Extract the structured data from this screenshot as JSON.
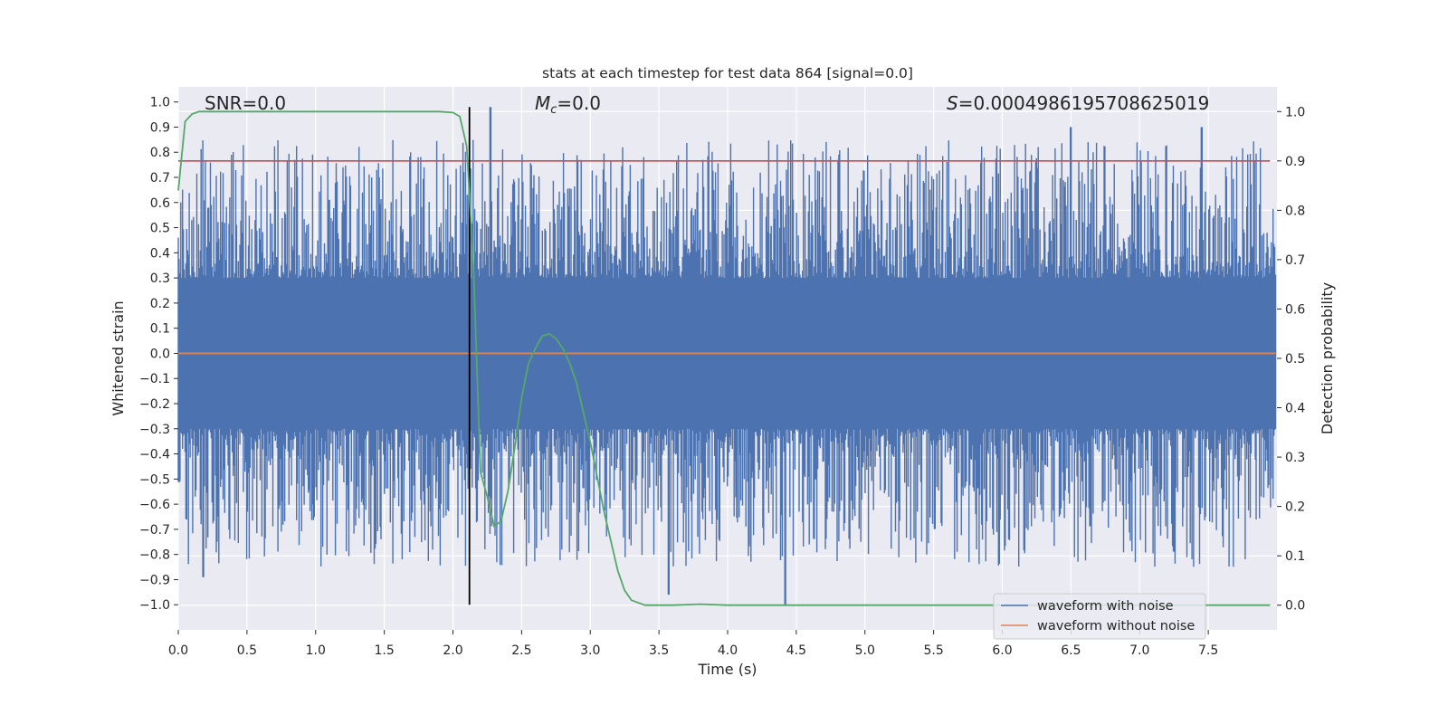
{
  "chart_data": {
    "type": "line",
    "title": "stats at each timestep for test data 864 [signal=0.0]",
    "xlabel": "Time (s)",
    "ylabel_left": "Whitened strain",
    "ylabel_right": "Detection probability",
    "xlim": [
      0.0,
      8.0
    ],
    "ylim_left": [
      -1.1,
      1.06
    ],
    "ylim_right": [
      -0.05,
      1.05
    ],
    "x_ticks": [
      "0.0",
      "0.5",
      "1.0",
      "1.5",
      "2.0",
      "2.5",
      "3.0",
      "3.5",
      "4.0",
      "4.5",
      "5.0",
      "5.5",
      "6.0",
      "6.5",
      "7.0",
      "7.5"
    ],
    "x_tick_values": [
      0.0,
      0.5,
      1.0,
      1.5,
      2.0,
      2.5,
      3.0,
      3.5,
      4.0,
      4.5,
      5.0,
      5.5,
      6.0,
      6.5,
      7.0,
      7.5
    ],
    "y_left_ticks": [
      "1.0",
      "0.9",
      "0.8",
      "0.7",
      "0.6",
      "0.5",
      "0.4",
      "0.3",
      "0.2",
      "0.1",
      "0.0",
      "−0.1",
      "−0.2",
      "−0.3",
      "−0.4",
      "−0.5",
      "−0.6",
      "−0.7",
      "−0.8",
      "−0.9",
      "−1.0"
    ],
    "y_left_tick_values": [
      1.0,
      0.9,
      0.8,
      0.7,
      0.6,
      0.5,
      0.4,
      0.3,
      0.2,
      0.1,
      0.0,
      -0.1,
      -0.2,
      -0.3,
      -0.4,
      -0.5,
      -0.6,
      -0.7,
      -0.8,
      -0.9,
      -1.0
    ],
    "y_right_ticks": [
      "1.0",
      "0.9",
      "0.8",
      "0.7",
      "0.6",
      "0.5",
      "0.4",
      "0.3",
      "0.2",
      "0.1",
      "0.0"
    ],
    "y_right_tick_values": [
      1.0,
      0.9,
      0.8,
      0.7,
      0.6,
      0.5,
      0.4,
      0.3,
      0.2,
      0.1,
      0.0
    ],
    "grid": true,
    "legend_position": "bottom-right",
    "legend": [
      "waveform with noise",
      "waveform without noise"
    ],
    "annotations": {
      "snr": "SNR=0.0",
      "mc_symbol": "M",
      "mc_subscript": "c",
      "mc_value": "=0.0",
      "s_symbol": "S",
      "s_value": "=0.0004986195708625019"
    },
    "series": [
      {
        "name": "waveform with noise",
        "axis": "left",
        "color": "#4c72b0",
        "style": "dense noise",
        "x_range": [
          0.0,
          7.99
        ],
        "approx_envelope": [
          -1.0,
          0.98
        ],
        "notable_peaks": [
          {
            "x": 0.18,
            "y": -0.89
          },
          {
            "x": 2.27,
            "y": 0.98
          },
          {
            "x": 3.57,
            "y": -0.96
          },
          {
            "x": 4.42,
            "y": -1.0
          },
          {
            "x": 6.5,
            "y": 0.9
          },
          {
            "x": 7.45,
            "y": 0.9
          }
        ]
      },
      {
        "name": "waveform without noise",
        "axis": "left",
        "color": "#dd8452",
        "x": [
          0.0,
          7.99
        ],
        "y": [
          0.0,
          0.0
        ]
      },
      {
        "name": "detection probability",
        "axis": "right",
        "color": "#55a868",
        "x": [
          0.0,
          0.05,
          0.1,
          0.15,
          0.5,
          1.0,
          1.5,
          1.9,
          2.0,
          2.05,
          2.1,
          2.15,
          2.2,
          2.25,
          2.3,
          2.35,
          2.4,
          2.45,
          2.5,
          2.55,
          2.6,
          2.65,
          2.7,
          2.75,
          2.8,
          2.85,
          2.9,
          2.95,
          3.0,
          3.1,
          3.2,
          3.25,
          3.3,
          3.4,
          3.6,
          3.8,
          4.0,
          4.5,
          5.0,
          6.0,
          7.0,
          7.95
        ],
        "y": [
          0.84,
          0.98,
          0.995,
          1.0,
          1.0,
          1.0,
          1.0,
          1.0,
          0.998,
          0.99,
          0.93,
          0.68,
          0.27,
          0.22,
          0.16,
          0.17,
          0.23,
          0.32,
          0.42,
          0.49,
          0.52,
          0.545,
          0.55,
          0.54,
          0.52,
          0.49,
          0.45,
          0.39,
          0.33,
          0.19,
          0.07,
          0.03,
          0.01,
          0.0,
          0.0,
          0.002,
          0.0,
          0.0,
          0.0,
          0.0,
          0.0,
          0.0
        ]
      },
      {
        "name": "threshold",
        "axis": "right",
        "color": "#c44e52",
        "x": [
          0.0,
          7.95
        ],
        "y": [
          0.9,
          0.9
        ]
      },
      {
        "name": "marker",
        "axis": "left",
        "type": "vline",
        "color": "#000000",
        "x": 2.12,
        "y": [
          -1.0,
          0.98
        ]
      }
    ]
  }
}
